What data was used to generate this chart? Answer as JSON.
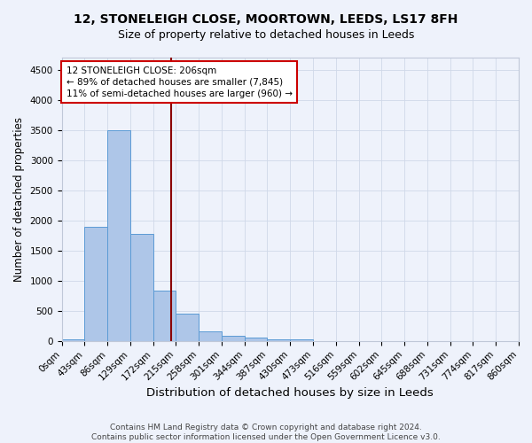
{
  "title": "12, STONELEIGH CLOSE, MOORTOWN, LEEDS, LS17 8FH",
  "subtitle": "Size of property relative to detached houses in Leeds",
  "xlabel": "Distribution of detached houses by size in Leeds",
  "ylabel": "Number of detached properties",
  "bar_values": [
    30,
    1900,
    3500,
    1780,
    830,
    450,
    155,
    90,
    50,
    25,
    25,
    0,
    0,
    0,
    0,
    0,
    0,
    0,
    0,
    0
  ],
  "bar_labels": [
    "0sqm",
    "43sqm",
    "86sqm",
    "129sqm",
    "172sqm",
    "215sqm",
    "258sqm",
    "301sqm",
    "344sqm",
    "387sqm",
    "430sqm",
    "473sqm",
    "516sqm",
    "559sqm",
    "602sqm",
    "645sqm",
    "688sqm",
    "731sqm",
    "774sqm",
    "817sqm",
    "860sqm"
  ],
  "bar_color": "#aec6e8",
  "bar_edge_color": "#5b9bd5",
  "background_color": "#eef2fb",
  "grid_color": "#d0d8e8",
  "vline_color": "#8b0000",
  "annotation_text": "12 STONELEIGH CLOSE: 206sqm\n← 89% of detached houses are smaller (7,845)\n11% of semi-detached houses are larger (960) →",
  "annotation_box_color": "white",
  "annotation_box_edge": "#cc0000",
  "ylim": [
    0,
    4700
  ],
  "yticks": [
    0,
    500,
    1000,
    1500,
    2000,
    2500,
    3000,
    3500,
    4000,
    4500
  ],
  "footer": "Contains HM Land Registry data © Crown copyright and database right 2024.\nContains public sector information licensed under the Open Government Licence v3.0.",
  "title_fontsize": 10,
  "subtitle_fontsize": 9,
  "ylabel_fontsize": 8.5,
  "xlabel_fontsize": 9.5,
  "tick_fontsize": 7.5,
  "footer_fontsize": 6.5,
  "annot_fontsize": 7.5
}
